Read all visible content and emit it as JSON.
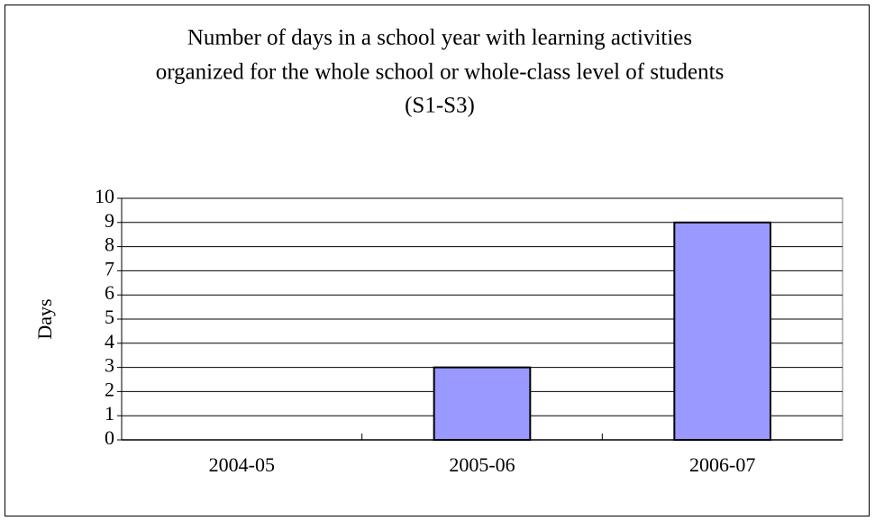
{
  "chart_data": {
    "type": "bar",
    "title": [
      "Number of days in a school year with learning activities",
      "organized for the whole school or whole-class level of students",
      "(S1-S3)"
    ],
    "y_label": "Days",
    "categories": [
      "2004-05",
      "2005-06",
      "2006-07"
    ],
    "values": [
      0,
      3,
      9
    ],
    "color": "#9999ff",
    "ylim": [
      0,
      10
    ],
    "yticks": [
      0,
      1,
      2,
      3,
      4,
      5,
      6,
      7,
      8,
      9,
      10
    ],
    "grid": true
  }
}
